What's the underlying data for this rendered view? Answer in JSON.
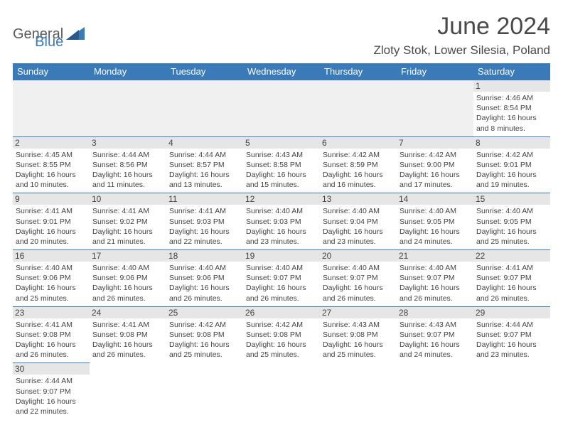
{
  "logo": {
    "text1": "General",
    "text2": "Blue"
  },
  "title": "June 2024",
  "subtitle": "Zloty Stok, Lower Silesia, Poland",
  "colors": {
    "header_bg": "#3a7ab8",
    "header_fg": "#ffffff",
    "cell_border": "#3a7ab8",
    "daynum_bg": "#e6e6e6",
    "empty_bg": "#f0f0f0",
    "text": "#444444",
    "logo_gray": "#5a5a5a",
    "logo_blue": "#3a7ab8",
    "title_color": "#4a4a4a"
  },
  "weekdays": [
    "Sunday",
    "Monday",
    "Tuesday",
    "Wednesday",
    "Thursday",
    "Friday",
    "Saturday"
  ],
  "rows": [
    [
      null,
      null,
      null,
      null,
      null,
      null,
      {
        "n": "1",
        "sr": "Sunrise: 4:46 AM",
        "ss": "Sunset: 8:54 PM",
        "d1": "Daylight: 16 hours",
        "d2": "and 8 minutes."
      }
    ],
    [
      {
        "n": "2",
        "sr": "Sunrise: 4:45 AM",
        "ss": "Sunset: 8:55 PM",
        "d1": "Daylight: 16 hours",
        "d2": "and 10 minutes."
      },
      {
        "n": "3",
        "sr": "Sunrise: 4:44 AM",
        "ss": "Sunset: 8:56 PM",
        "d1": "Daylight: 16 hours",
        "d2": "and 11 minutes."
      },
      {
        "n": "4",
        "sr": "Sunrise: 4:44 AM",
        "ss": "Sunset: 8:57 PM",
        "d1": "Daylight: 16 hours",
        "d2": "and 13 minutes."
      },
      {
        "n": "5",
        "sr": "Sunrise: 4:43 AM",
        "ss": "Sunset: 8:58 PM",
        "d1": "Daylight: 16 hours",
        "d2": "and 15 minutes."
      },
      {
        "n": "6",
        "sr": "Sunrise: 4:42 AM",
        "ss": "Sunset: 8:59 PM",
        "d1": "Daylight: 16 hours",
        "d2": "and 16 minutes."
      },
      {
        "n": "7",
        "sr": "Sunrise: 4:42 AM",
        "ss": "Sunset: 9:00 PM",
        "d1": "Daylight: 16 hours",
        "d2": "and 17 minutes."
      },
      {
        "n": "8",
        "sr": "Sunrise: 4:42 AM",
        "ss": "Sunset: 9:01 PM",
        "d1": "Daylight: 16 hours",
        "d2": "and 19 minutes."
      }
    ],
    [
      {
        "n": "9",
        "sr": "Sunrise: 4:41 AM",
        "ss": "Sunset: 9:01 PM",
        "d1": "Daylight: 16 hours",
        "d2": "and 20 minutes."
      },
      {
        "n": "10",
        "sr": "Sunrise: 4:41 AM",
        "ss": "Sunset: 9:02 PM",
        "d1": "Daylight: 16 hours",
        "d2": "and 21 minutes."
      },
      {
        "n": "11",
        "sr": "Sunrise: 4:41 AM",
        "ss": "Sunset: 9:03 PM",
        "d1": "Daylight: 16 hours",
        "d2": "and 22 minutes."
      },
      {
        "n": "12",
        "sr": "Sunrise: 4:40 AM",
        "ss": "Sunset: 9:03 PM",
        "d1": "Daylight: 16 hours",
        "d2": "and 23 minutes."
      },
      {
        "n": "13",
        "sr": "Sunrise: 4:40 AM",
        "ss": "Sunset: 9:04 PM",
        "d1": "Daylight: 16 hours",
        "d2": "and 23 minutes."
      },
      {
        "n": "14",
        "sr": "Sunrise: 4:40 AM",
        "ss": "Sunset: 9:05 PM",
        "d1": "Daylight: 16 hours",
        "d2": "and 24 minutes."
      },
      {
        "n": "15",
        "sr": "Sunrise: 4:40 AM",
        "ss": "Sunset: 9:05 PM",
        "d1": "Daylight: 16 hours",
        "d2": "and 25 minutes."
      }
    ],
    [
      {
        "n": "16",
        "sr": "Sunrise: 4:40 AM",
        "ss": "Sunset: 9:06 PM",
        "d1": "Daylight: 16 hours",
        "d2": "and 25 minutes."
      },
      {
        "n": "17",
        "sr": "Sunrise: 4:40 AM",
        "ss": "Sunset: 9:06 PM",
        "d1": "Daylight: 16 hours",
        "d2": "and 26 minutes."
      },
      {
        "n": "18",
        "sr": "Sunrise: 4:40 AM",
        "ss": "Sunset: 9:06 PM",
        "d1": "Daylight: 16 hours",
        "d2": "and 26 minutes."
      },
      {
        "n": "19",
        "sr": "Sunrise: 4:40 AM",
        "ss": "Sunset: 9:07 PM",
        "d1": "Daylight: 16 hours",
        "d2": "and 26 minutes."
      },
      {
        "n": "20",
        "sr": "Sunrise: 4:40 AM",
        "ss": "Sunset: 9:07 PM",
        "d1": "Daylight: 16 hours",
        "d2": "and 26 minutes."
      },
      {
        "n": "21",
        "sr": "Sunrise: 4:40 AM",
        "ss": "Sunset: 9:07 PM",
        "d1": "Daylight: 16 hours",
        "d2": "and 26 minutes."
      },
      {
        "n": "22",
        "sr": "Sunrise: 4:41 AM",
        "ss": "Sunset: 9:07 PM",
        "d1": "Daylight: 16 hours",
        "d2": "and 26 minutes."
      }
    ],
    [
      {
        "n": "23",
        "sr": "Sunrise: 4:41 AM",
        "ss": "Sunset: 9:08 PM",
        "d1": "Daylight: 16 hours",
        "d2": "and 26 minutes."
      },
      {
        "n": "24",
        "sr": "Sunrise: 4:41 AM",
        "ss": "Sunset: 9:08 PM",
        "d1": "Daylight: 16 hours",
        "d2": "and 26 minutes."
      },
      {
        "n": "25",
        "sr": "Sunrise: 4:42 AM",
        "ss": "Sunset: 9:08 PM",
        "d1": "Daylight: 16 hours",
        "d2": "and 25 minutes."
      },
      {
        "n": "26",
        "sr": "Sunrise: 4:42 AM",
        "ss": "Sunset: 9:08 PM",
        "d1": "Daylight: 16 hours",
        "d2": "and 25 minutes."
      },
      {
        "n": "27",
        "sr": "Sunrise: 4:43 AM",
        "ss": "Sunset: 9:08 PM",
        "d1": "Daylight: 16 hours",
        "d2": "and 25 minutes."
      },
      {
        "n": "28",
        "sr": "Sunrise: 4:43 AM",
        "ss": "Sunset: 9:07 PM",
        "d1": "Daylight: 16 hours",
        "d2": "and 24 minutes."
      },
      {
        "n": "29",
        "sr": "Sunrise: 4:44 AM",
        "ss": "Sunset: 9:07 PM",
        "d1": "Daylight: 16 hours",
        "d2": "and 23 minutes."
      }
    ],
    [
      {
        "n": "30",
        "sr": "Sunrise: 4:44 AM",
        "ss": "Sunset: 9:07 PM",
        "d1": "Daylight: 16 hours",
        "d2": "and 22 minutes."
      },
      null,
      null,
      null,
      null,
      null,
      null
    ]
  ]
}
